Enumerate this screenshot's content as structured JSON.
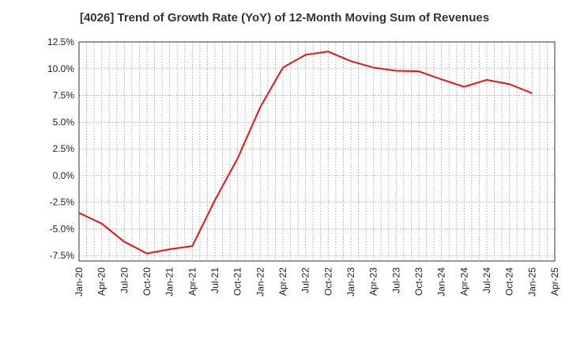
{
  "chart_data": {
    "type": "line",
    "title": "[4026]  Trend of Growth Rate (YoY) of 12-Month Moving Sum of Revenues",
    "xlabel": "",
    "ylabel": "",
    "ylim": [
      -8.0,
      12.5
    ],
    "yticks": [
      -7.5,
      -5.0,
      -2.5,
      0.0,
      2.5,
      5.0,
      7.5,
      10.0,
      12.5
    ],
    "ytick_labels": [
      "-7.5%",
      "-5.0%",
      "-2.5%",
      "0.0%",
      "2.5%",
      "5.0%",
      "7.5%",
      "10.0%",
      "12.5%"
    ],
    "xtick_labels": [
      "Jan-20",
      "Apr-20",
      "Jul-20",
      "Oct-20",
      "Jan-21",
      "Apr-21",
      "Jul-21",
      "Oct-21",
      "Jan-22",
      "Apr-22",
      "Jul-22",
      "Oct-22",
      "Jan-23",
      "Apr-23",
      "Jul-23",
      "Oct-23",
      "Jan-24",
      "Apr-24",
      "Jul-24",
      "Oct-24",
      "Jan-25",
      "Apr-25"
    ],
    "grid": true,
    "series": [
      {
        "color": "#e8141b",
        "x": [
          "Jan-20",
          "Apr-20",
          "Jul-20",
          "Oct-20",
          "Jan-21",
          "Apr-21",
          "Jul-21",
          "Oct-21",
          "Jan-22",
          "Apr-22",
          "Jul-22",
          "Oct-22",
          "Jan-23",
          "Apr-23",
          "Jul-23",
          "Oct-23",
          "Jan-24",
          "Apr-24",
          "Jul-24",
          "Oct-24",
          "Jan-25"
        ],
        "values": [
          -3.5,
          -4.5,
          -6.2,
          -7.3,
          -6.9,
          -6.6,
          -2.3,
          1.6,
          6.4,
          10.1,
          11.3,
          11.6,
          10.7,
          10.1,
          9.8,
          9.75,
          9.0,
          8.3,
          8.95,
          8.55,
          7.7
        ]
      }
    ]
  }
}
